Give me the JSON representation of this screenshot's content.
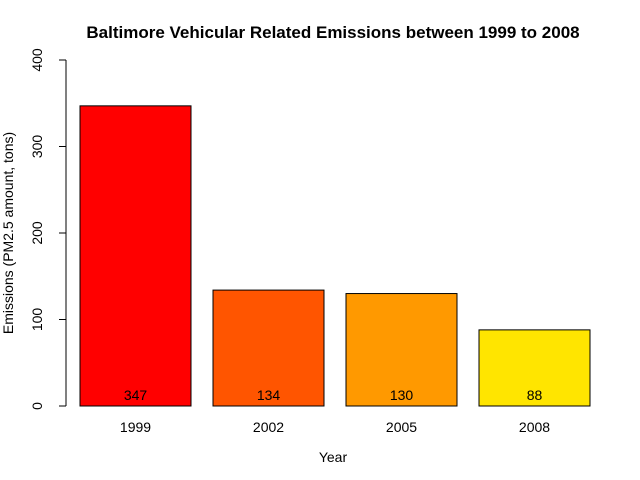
{
  "chart_data": {
    "type": "bar",
    "title": "Baltimore Vehicular Related Emissions between 1999 to 2008",
    "xlabel": "Year",
    "ylabel": "Emissions (PM2.5 amount, tons)",
    "categories": [
      "1999",
      "2002",
      "2005",
      "2008"
    ],
    "values": [
      347,
      134,
      130,
      88
    ],
    "data_labels": [
      "347",
      "134",
      "130",
      "88"
    ],
    "colors": [
      "#ff0000",
      "#ff5500",
      "#ff9900",
      "#ffe500"
    ],
    "ylim": [
      0,
      400
    ],
    "yticks": [
      0,
      100,
      200,
      300,
      400
    ],
    "ytick_labels": [
      "0",
      "100",
      "200",
      "300",
      "400"
    ],
    "grid": false,
    "legend": "none"
  }
}
